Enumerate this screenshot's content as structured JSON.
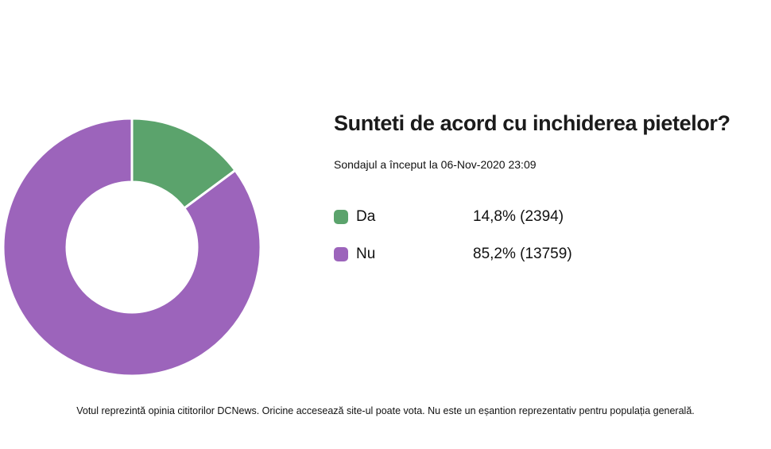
{
  "poll": {
    "title": "Sunteti de acord cu inchiderea pietelor?",
    "subtitle": "Sondajul a început la 06-Nov-2020 23:09",
    "disclaimer": "Votul reprezintă opinia cititorilor DCNews. Oricine accesează site-ul poate vota. Nu este un eșantion reprezentativ pentru populația generală."
  },
  "chart_data": {
    "type": "pie",
    "title": "Sunteti de acord cu inchiderea pietelor?",
    "donut": true,
    "inner_radius_ratio": 0.506,
    "start_angle_deg": 0,
    "direction": "clockwise",
    "legend_position": "right",
    "slice_gap_color": "#ffffff",
    "series": [
      {
        "name": "Da",
        "value": 2394,
        "percent": 14.8,
        "percent_label": "14,8%",
        "display": "14,8% (2394)",
        "color": "#5ba36c"
      },
      {
        "name": "Nu",
        "value": 13759,
        "percent": 85.2,
        "percent_label": "85,2%",
        "display": "85,2% (13759)",
        "color": "#9c64bb"
      }
    ]
  },
  "colors": {
    "background": "#ffffff",
    "title_text": "#1b1b1b",
    "body_text": "#111111"
  }
}
